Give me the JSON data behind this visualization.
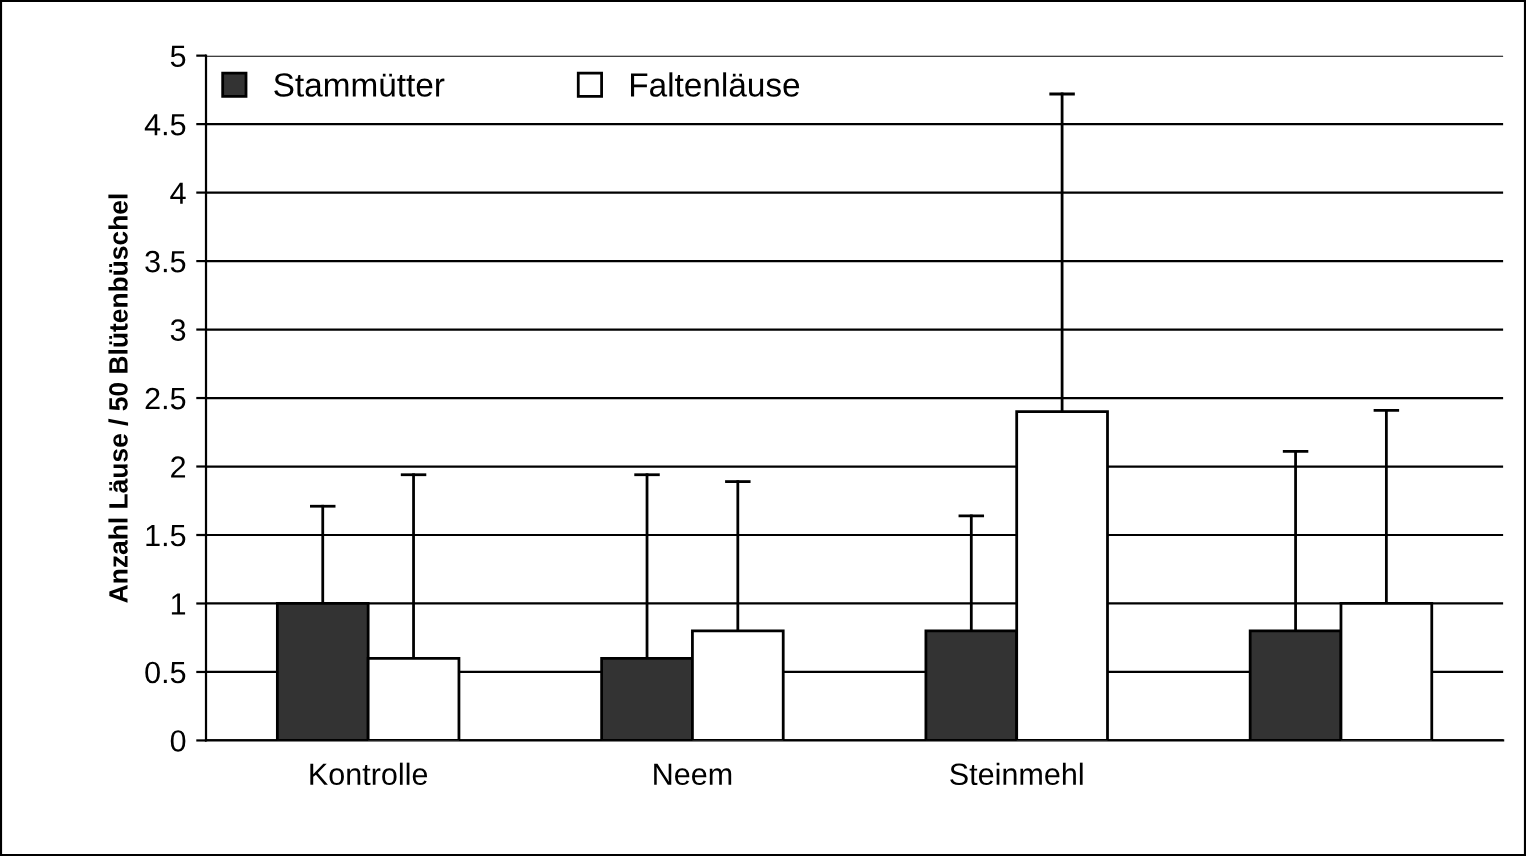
{
  "chart_data": {
    "type": "bar",
    "ylabel": "Anzahl Läuse / 50 Blütenbüschel",
    "categories": [
      "Kontrolle",
      "Neem",
      "Steinmehl",
      null
    ],
    "series": [
      {
        "name": "Stammütter",
        "color": "#333333",
        "values": [
          1.0,
          0.6,
          0.8,
          0.8
        ],
        "errors": [
          [
            1.0,
            1.71
          ],
          [
            0.6,
            1.94
          ],
          [
            0.8,
            1.64
          ],
          [
            0.8,
            2.11
          ]
        ]
      },
      {
        "name": "Faltenläuse",
        "color": "#ffffff",
        "values": [
          0.6,
          0.8,
          2.4,
          1.0
        ],
        "errors": [
          [
            0.6,
            1.94
          ],
          [
            0.8,
            1.89
          ],
          [
            2.4,
            4.72
          ],
          [
            1.0,
            2.41
          ]
        ]
      }
    ],
    "ylim": [
      0,
      5
    ],
    "yticks": [
      0,
      0.5,
      1,
      1.5,
      2,
      2.5,
      3,
      3.5,
      4,
      4.5,
      5
    ],
    "grid": "y",
    "legend": "top left"
  }
}
